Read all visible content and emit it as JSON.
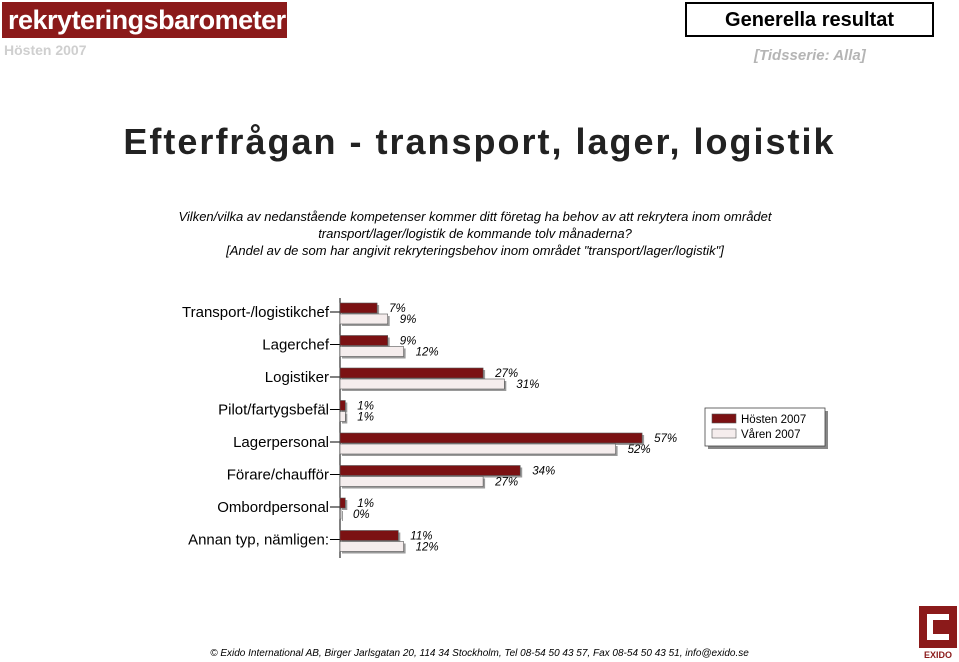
{
  "header": {
    "logo_text": "rekryteringsbarometern",
    "period": "Hösten 2007",
    "section_title": "Generella resultat",
    "timeseries": "[Tidsserie: Alla]"
  },
  "main": {
    "title": "Efterfrågan - transport, lager, logistik",
    "question_lines": [
      "Vilken/vilka av nedanstående kompetenser kommer ditt företag ha behov av att rekrytera inom området",
      "transport/lager/logistik de kommande tolv månaderna?",
      "[Andel av de som har angivit rekryteringsbehov inom området \"transport/lager/logistik\"]"
    ]
  },
  "chart_data": {
    "type": "bar",
    "orientation": "horizontal",
    "categories": [
      "Transport-/logistikchef",
      "Lagerchef",
      "Logistiker",
      "Pilot/fartygsbefäl",
      "Lagerpersonal",
      "Förare/chaufför",
      "Ombordpersonal",
      "Annan typ, nämligen:"
    ],
    "series": [
      {
        "name": "Hösten 2007",
        "values": [
          7,
          9,
          27,
          1,
          57,
          34,
          1,
          11
        ],
        "labels": [
          "7%",
          "9%",
          "27%",
          "1%",
          "57%",
          "34%",
          "1%",
          "11%"
        ],
        "color": "#7b1113"
      },
      {
        "name": "Våren 2007",
        "values": [
          9,
          12,
          31,
          1,
          52,
          27,
          0,
          12
        ],
        "labels": [
          "9%",
          "12%",
          "31%",
          "1%",
          "52%",
          "27%",
          "0%",
          "12%"
        ],
        "color": "#f5eded"
      }
    ],
    "legend_position": "right",
    "grid": false
  },
  "footer": {
    "text": "© Exido International AB, Birger Jarlsgatan 20, 114 34 Stockholm, Tel 08-54 50 43 57, Fax 08-54 50 43 51, info@exido.se",
    "brand": "EXIDO"
  }
}
